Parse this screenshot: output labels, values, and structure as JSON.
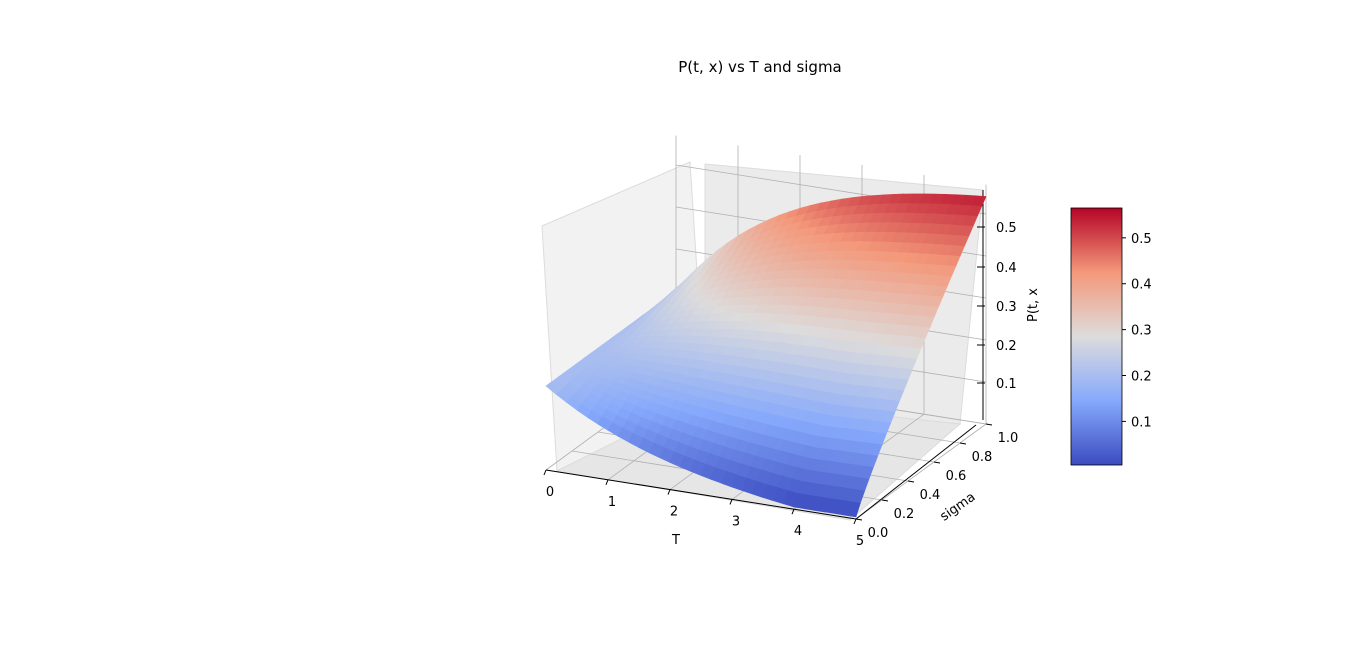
{
  "chart_data": {
    "type": "surface3d",
    "title": "P(t, x) vs T and sigma",
    "xlabel": "T",
    "ylabel": "sigma",
    "zlabel": "P(t, x",
    "xlim": [
      0,
      5
    ],
    "ylim": [
      0,
      1
    ],
    "zlim": [
      0,
      0.57
    ],
    "x_ticks": [
      "0",
      "1",
      "2",
      "3",
      "4",
      "5"
    ],
    "y_ticks": [
      "0.0",
      "0.2",
      "0.4",
      "0.6",
      "0.8",
      "1.0"
    ],
    "z_ticks": [
      "0.1",
      "0.2",
      "0.3",
      "0.4",
      "0.5"
    ],
    "colorbar": {
      "colormap": "coolwarm",
      "range": [
        0.005,
        0.565
      ],
      "ticks": [
        "0.1",
        "0.2",
        "0.3",
        "0.4",
        "0.5"
      ]
    },
    "grid": true,
    "surface_samples": {
      "T": [
        0,
        1,
        2,
        3,
        4,
        5
      ],
      "sigma": [
        0.0,
        0.2,
        0.4,
        0.6,
        0.8,
        1.0
      ],
      "P_at_sigma_0": [
        0.2,
        0.12,
        0.075,
        0.045,
        0.025,
        0.005
      ],
      "P_at_sigma_1": [
        0.2,
        0.33,
        0.45,
        0.52,
        0.55,
        0.565
      ]
    }
  },
  "colors": {
    "low": "#3b4cc0",
    "mid": "#dddddd",
    "high": "#b40426",
    "pane": "#f2f2f2",
    "grid": "#b0b0b0"
  }
}
